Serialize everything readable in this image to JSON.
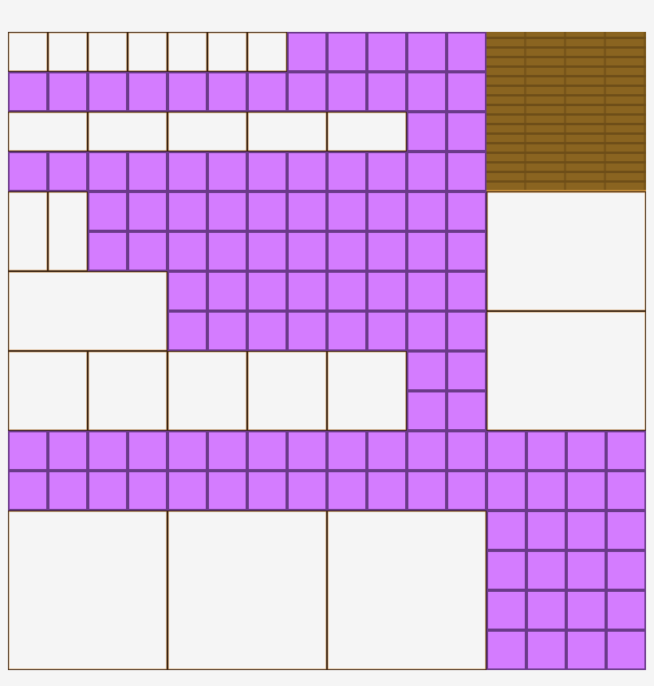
{
  "colors": {
    "purple": "#d47cff",
    "purple_border": "#6b3a8a",
    "empty": "#f5f5f5",
    "empty_border": "#3a2412",
    "wood": "#8a6420",
    "wood_dark": "#6e4e18"
  }
}
